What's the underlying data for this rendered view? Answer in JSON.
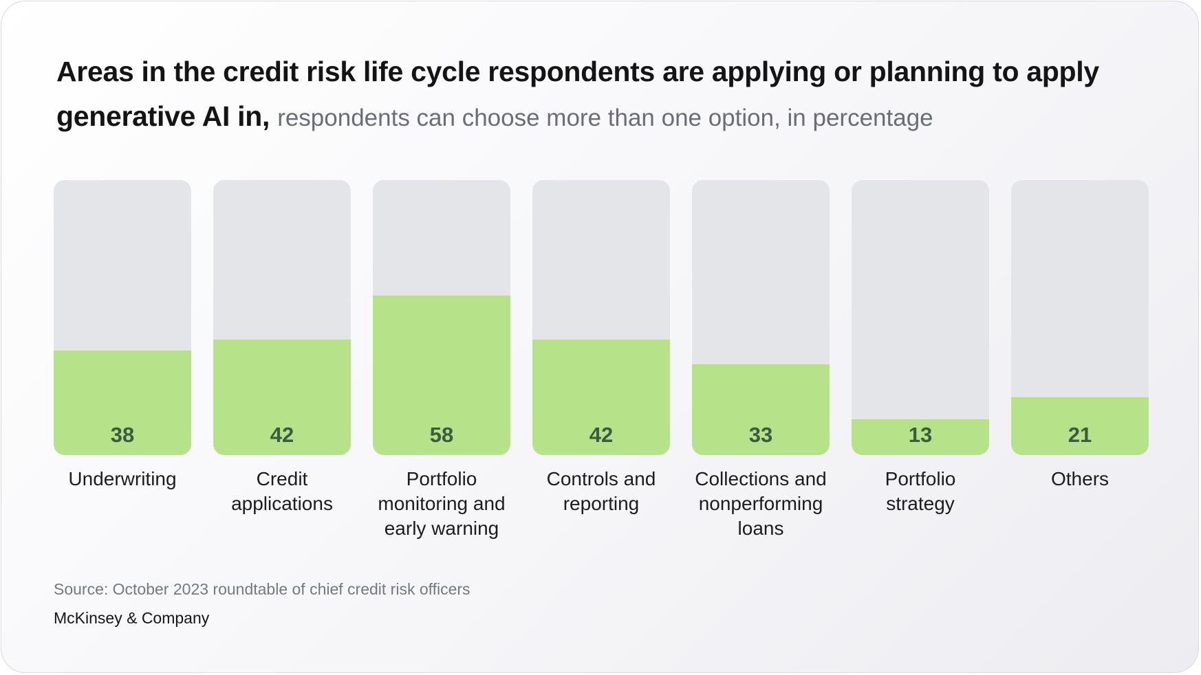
{
  "header": {
    "title": "Areas in the credit risk life cycle respondents are applying or planning to apply generative AI in,",
    "subtitle": "respondents can choose more than one option, in percentage"
  },
  "footer": {
    "source": "Source: October 2023 roundtable of chief credit risk officers",
    "brand": "McKinsey & Company"
  },
  "colors": {
    "bar_fill": "#b6e38a",
    "bar_track": "#e4e5e9",
    "value_text": "#3d5b3e"
  },
  "chart_data": {
    "type": "bar",
    "title": "Areas in the credit risk life cycle respondents are applying or planning to apply generative AI in,",
    "subtitle": "respondents can choose more than one option, in percentage",
    "categories": [
      [
        "Underwriting"
      ],
      [
        "Credit",
        "applications"
      ],
      [
        "Portfolio",
        "monitoring and",
        "early warning"
      ],
      [
        "Controls and",
        "reporting"
      ],
      [
        "Collections and",
        "nonperforming",
        "loans"
      ],
      [
        "Portfolio",
        "strategy"
      ],
      [
        "Others"
      ]
    ],
    "values": [
      38,
      42,
      58,
      42,
      33,
      13,
      21
    ],
    "ylim": [
      0,
      100
    ],
    "grid": false,
    "legend": "none"
  }
}
